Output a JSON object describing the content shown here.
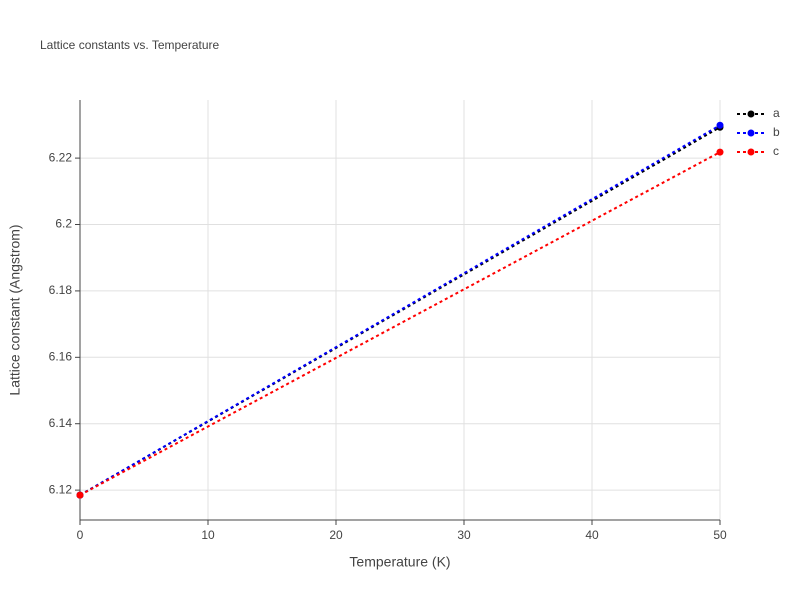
{
  "chart_data": {
    "type": "line",
    "title": "Lattice constants vs. Temperature",
    "xlabel": "Temperature (K)",
    "ylabel": "Lattice constant (Angstrom)",
    "x": [
      0,
      50
    ],
    "series": [
      {
        "name": "a",
        "color": "#000000",
        "values": [
          6.1185,
          6.2293
        ]
      },
      {
        "name": "b",
        "color": "#0000ff",
        "values": [
          6.1185,
          6.2299
        ]
      },
      {
        "name": "c",
        "color": "#ff0000",
        "values": [
          6.1185,
          6.2218
        ]
      }
    ],
    "xlim": [
      0,
      50
    ],
    "xticks": [
      0,
      10,
      20,
      30,
      40,
      50
    ],
    "ylim": [
      6.111,
      6.2375
    ],
    "yticks": [
      6.12,
      6.14,
      6.16,
      6.18,
      6.2,
      6.22
    ],
    "grid": true,
    "legend": "right"
  }
}
